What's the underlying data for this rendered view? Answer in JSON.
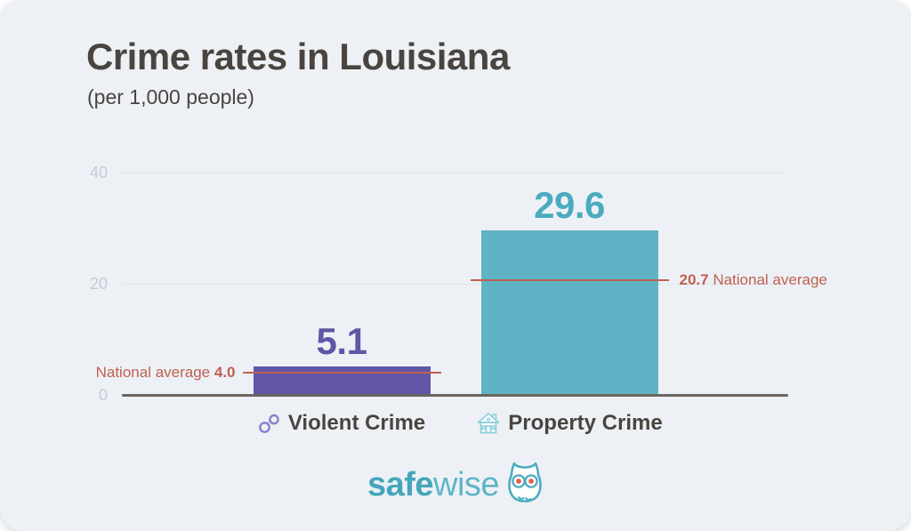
{
  "header": {
    "title": "Crime rates in Louisiana",
    "subtitle": "(per 1,000 people)"
  },
  "chart_data": {
    "type": "bar",
    "title": "Crime rates in Louisiana",
    "subtitle": "(per 1,000 people)",
    "categories": [
      "Violent Crime",
      "Property Crime"
    ],
    "values": [
      5.1,
      29.6
    ],
    "value_labels": [
      "5.1",
      "29.6"
    ],
    "national_averages": [
      4.0,
      20.7
    ],
    "annotations": [
      {
        "prefix": "National average",
        "value": "4.0",
        "position": "left"
      },
      {
        "value": "20.7",
        "suffix": "National average",
        "position": "right"
      }
    ],
    "yticks": [
      40,
      20,
      0
    ],
    "ytick_labels": [
      "40",
      "20",
      "0"
    ],
    "ylim": [
      0,
      40
    ],
    "grid": true,
    "legend": false,
    "bar_colors": [
      "#6055a6",
      "#60b3c4"
    ],
    "value_label_colors": [
      "#6055a6",
      "#4aabbf"
    ],
    "average_line_color": "#c06052",
    "category_icons": [
      "handcuffs-icon",
      "house-icon"
    ]
  },
  "footer": {
    "brand_bold": "safe",
    "brand_light": "wise",
    "logo_color": "#4fadc1"
  }
}
